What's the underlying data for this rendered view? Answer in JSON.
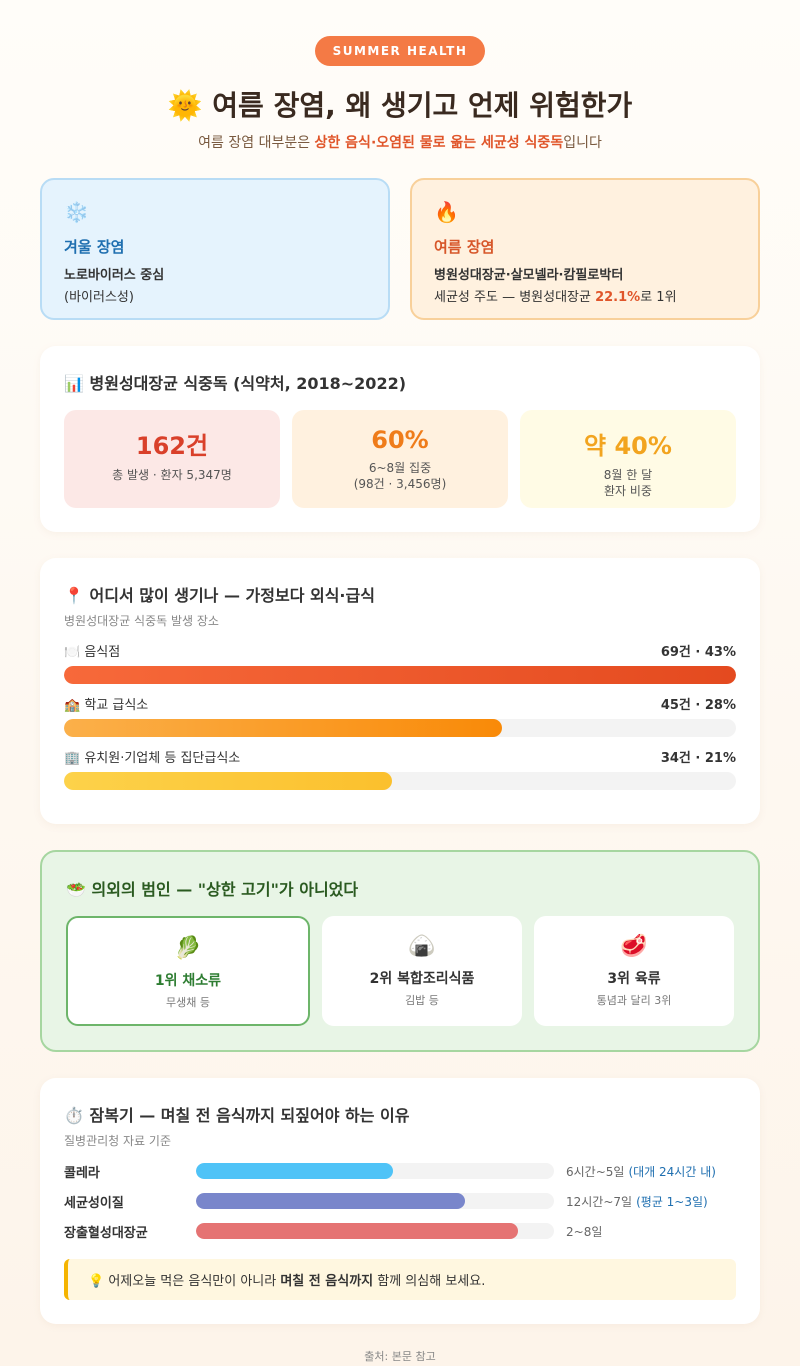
{
  "badge": "SUMMER HEALTH",
  "title": "여름 장염, 왜 생기고 언제 위험한가",
  "subtitle": [
    "여름 장염 대부분은 ",
    "상한 음식·오염된 물로 옮는 세균성 식중독",
    "입니다"
  ],
  "compare": [
    {
      "heading": "겨울 장염",
      "lines": [
        "노로바이러스 중심",
        "(바이러스성)"
      ]
    },
    {
      "heading": "여름 장염",
      "lines": [
        "병원성대장균·살모넬라·캄필로박터"
      ],
      "note": [
        "세균성 주도 — 병원성대장균 ",
        "22.1%",
        "로 1위"
      ]
    }
  ],
  "stats": {
    "heading": "병원성대장균 식중독 (식약처, 2018~2022)",
    "items": [
      {
        "value": "162건",
        "desc": [
          "총 발생 · 환자 5,347명"
        ]
      },
      {
        "value": "60%",
        "desc": [
          "6~8월 집중",
          "(98건 · 3,456명)"
        ]
      },
      {
        "value": "약 40%",
        "desc": [
          "8월 한 달",
          "환자 비중"
        ]
      }
    ]
  },
  "places": {
    "heading": "어디서 많이 생기나 — 가정보다 외식·급식",
    "sub": "병원성대장균 식중독 발생 장소",
    "items": [
      {
        "name": "음식점",
        "label": "69건 · 43%",
        "share": 43
      },
      {
        "name": "학교 급식소",
        "label": "45건 · 28%",
        "share": 28
      },
      {
        "name": "유치원·기업체 등 집단급식소",
        "label": "34건 · 21%",
        "share": 21
      }
    ]
  },
  "culprit": {
    "heading": "의외의 범인 — \"상한 고기\"가 아니었다",
    "items": [
      {
        "rank": "1위 채소류",
        "note": "무생채 등"
      },
      {
        "rank": "2위 복합조리식품",
        "note": "김밥 등"
      },
      {
        "rank": "3위 육류",
        "note": "통념과 달리 3위"
      }
    ]
  },
  "incubation": {
    "heading": "잠복기 — 며칠 전 음식까지 되짚어야 하는 이유",
    "sub": "질병관리청 자료 기준",
    "items": [
      {
        "name": "콜레라",
        "range": "6시간~5일",
        "extra": "(대개 24시간 내)",
        "fill": 55
      },
      {
        "name": "세균성이질",
        "range": "12시간~7일",
        "extra": "(평균 1~3일)",
        "fill": 75
      },
      {
        "name": "장출혈성대장균",
        "range": "2~8일",
        "fill": 90
      }
    ],
    "tip": [
      "어제오늘 먹은 음식만이 아니라 ",
      "며칠 전 음식까지",
      " 함께 의심해 보세요."
    ]
  },
  "source": "출처: 본문 참고"
}
